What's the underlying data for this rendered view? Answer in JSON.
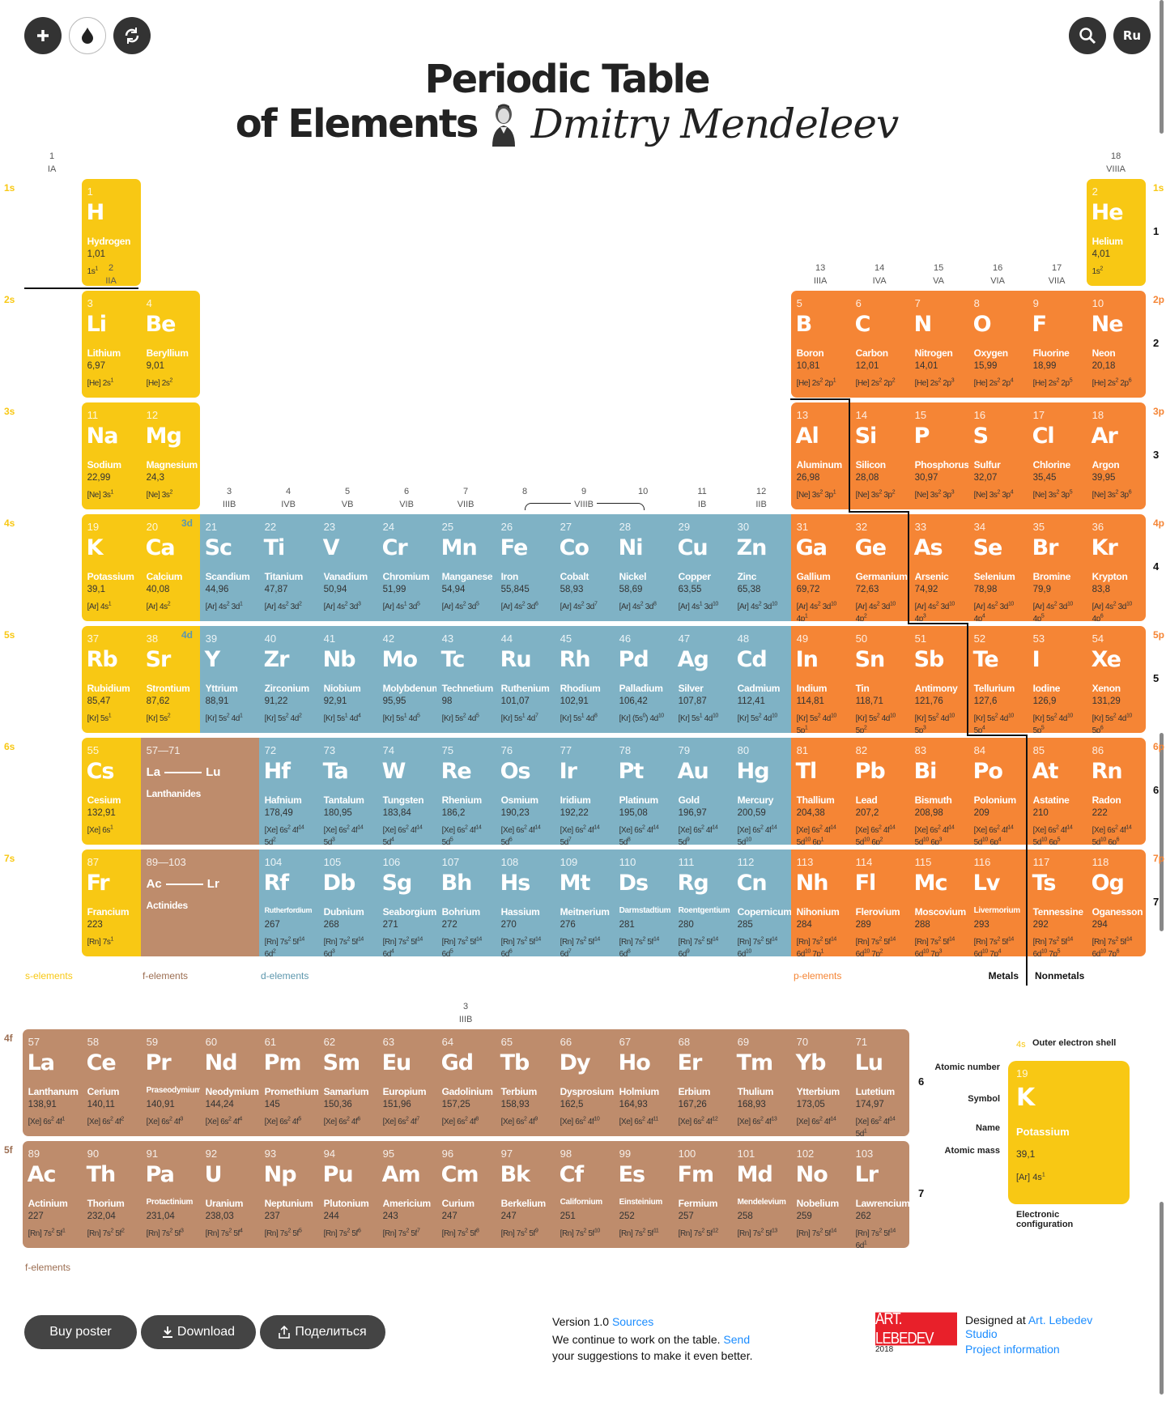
{
  "header": {
    "add_icon": "plus-icon",
    "theme_icon": "droplet-icon",
    "rotate_icon": "refresh-icon",
    "search_icon": "search-icon",
    "lang_label": "Ru",
    "title_line1": "Periodic Table",
    "title_line2_bold": "of Elements",
    "title_line2_italic": "Dmitry Mendeleev"
  },
  "groups": [
    {
      "n": "1",
      "r": "IA"
    },
    {
      "n": "2",
      "r": "IIA"
    },
    {
      "n": "3",
      "r": "IIIB"
    },
    {
      "n": "4",
      "r": "IVB"
    },
    {
      "n": "5",
      "r": "VB"
    },
    {
      "n": "6",
      "r": "VIB"
    },
    {
      "n": "7",
      "r": "VIIB"
    },
    {
      "n": "8",
      "r": ""
    },
    {
      "n": "9",
      "r": "VIIIB"
    },
    {
      "n": "10",
      "r": ""
    },
    {
      "n": "11",
      "r": "IB"
    },
    {
      "n": "12",
      "r": "IIB"
    },
    {
      "n": "13",
      "r": "IIIA"
    },
    {
      "n": "14",
      "r": "IVA"
    },
    {
      "n": "15",
      "r": "VA"
    },
    {
      "n": "16",
      "r": "VIA"
    },
    {
      "n": "17",
      "r": "VIIA"
    },
    {
      "n": "18",
      "r": "VIIIA"
    }
  ],
  "left_levels": [
    "1s",
    "2s",
    "3s",
    "4s",
    "5s",
    "6s",
    "7s"
  ],
  "d_levels": [
    "3d",
    "4d"
  ],
  "right_levels": [
    "1s",
    "2p",
    "3p",
    "4p",
    "5p",
    "6p",
    "7p"
  ],
  "periods": [
    "1",
    "2",
    "3",
    "4",
    "5",
    "6",
    "7"
  ],
  "f_levels": [
    "4f",
    "5f"
  ],
  "f_group": {
    "n": "3",
    "r": "IIIB"
  },
  "placeholders": [
    {
      "range": "57—71",
      "from": "La",
      "to": "Lu",
      "label": "Lanthanides"
    },
    {
      "range": "89—103",
      "from": "Ac",
      "to": "Lr",
      "label": "Actinides"
    }
  ],
  "legend": {
    "s": "s-elements",
    "f": "f-elements",
    "d": "d-elements",
    "p": "p-elements",
    "metals": "Metals",
    "nonmetals": "Nonmetals",
    "f_bottom": "f-elements"
  },
  "colors": {
    "s": "#F8C814",
    "p": "#F58535",
    "d": "#7FB2C5",
    "f": "#BE8C6C",
    "link": "#1a8cff"
  },
  "elements": [
    [
      1,
      "H",
      "Hydrogen",
      "1,01",
      "1s1"
    ],
    [
      2,
      "He",
      "Helium",
      "4,01",
      "1s2"
    ],
    [
      3,
      "Li",
      "Lithium",
      "6,97",
      "[He] 2s1"
    ],
    [
      4,
      "Be",
      "Beryllium",
      "9,01",
      "[He] 2s2"
    ],
    [
      5,
      "B",
      "Boron",
      "10,81",
      "[He] 2s2 2p1"
    ],
    [
      6,
      "C",
      "Carbon",
      "12,01",
      "[He] 2s2 2p2"
    ],
    [
      7,
      "N",
      "Nitrogen",
      "14,01",
      "[He] 2s2 2p3"
    ],
    [
      8,
      "O",
      "Oxygen",
      "15,99",
      "[He] 2s2 2p4"
    ],
    [
      9,
      "F",
      "Fluorine",
      "18,99",
      "[He] 2s2 2p5"
    ],
    [
      10,
      "Ne",
      "Neon",
      "20,18",
      "[He] 2s2 2p6"
    ],
    [
      11,
      "Na",
      "Sodium",
      "22,99",
      "[Ne] 3s1"
    ],
    [
      12,
      "Mg",
      "Magnesium",
      "24,3",
      "[Ne] 3s2"
    ],
    [
      13,
      "Al",
      "Aluminum",
      "26,98",
      "[Ne] 3s2 3p1"
    ],
    [
      14,
      "Si",
      "Silicon",
      "28,08",
      "[Ne] 3s2 3p2"
    ],
    [
      15,
      "P",
      "Phosphorus",
      "30,97",
      "[Ne] 3s2 3p3"
    ],
    [
      16,
      "S",
      "Sulfur",
      "32,07",
      "[Ne] 3s2 3p4"
    ],
    [
      17,
      "Cl",
      "Chlorine",
      "35,45",
      "[Ne] 3s2 3p5"
    ],
    [
      18,
      "Ar",
      "Argon",
      "39,95",
      "[Ne] 3s2 3p6"
    ],
    [
      19,
      "K",
      "Potassium",
      "39,1",
      "[Ar] 4s1"
    ],
    [
      20,
      "Ca",
      "Calcium",
      "40,08",
      "[Ar] 4s2"
    ],
    [
      21,
      "Sc",
      "Scandium",
      "44,96",
      "[Ar] 4s2 3d1"
    ],
    [
      22,
      "Ti",
      "Titanium",
      "47,87",
      "[Ar] 4s2 3d2"
    ],
    [
      23,
      "V",
      "Vanadium",
      "50,94",
      "[Ar] 4s2 3d3"
    ],
    [
      24,
      "Cr",
      "Chromium",
      "51,99",
      "[Ar] 4s1 3d5"
    ],
    [
      25,
      "Mn",
      "Manganese",
      "54,94",
      "[Ar] 4s2 3d5"
    ],
    [
      26,
      "Fe",
      "Iron",
      "55,845",
      "[Ar] 4s2 3d6"
    ],
    [
      27,
      "Co",
      "Cobalt",
      "58,93",
      "[Ar] 4s2 3d7"
    ],
    [
      28,
      "Ni",
      "Nickel",
      "58,69",
      "[Ar] 4s2 3d8"
    ],
    [
      29,
      "Cu",
      "Copper",
      "63,55",
      "[Ar] 4s1 3d10"
    ],
    [
      30,
      "Zn",
      "Zinc",
      "65,38",
      "[Ar] 4s2 3d10"
    ],
    [
      31,
      "Ga",
      "Gallium",
      "69,72",
      "[Ar] 4s2 3d10 4p1"
    ],
    [
      32,
      "Ge",
      "Germanium",
      "72,63",
      "[Ar] 4s2 3d10 4p2"
    ],
    [
      33,
      "As",
      "Arsenic",
      "74,92",
      "[Ar] 4s2 3d10 4p3"
    ],
    [
      34,
      "Se",
      "Selenium",
      "78,98",
      "[Ar] 4s2 3d10 4p4"
    ],
    [
      35,
      "Br",
      "Bromine",
      "79,9",
      "[Ar] 4s2 3d10 4p5"
    ],
    [
      36,
      "Kr",
      "Krypton",
      "83,8",
      "[Ar] 4s2 3d10 4p6"
    ],
    [
      37,
      "Rb",
      "Rubidium",
      "85,47",
      "[Kr] 5s1"
    ],
    [
      38,
      "Sr",
      "Strontium",
      "87,62",
      "[Kr] 5s2"
    ],
    [
      39,
      "Y",
      "Yttrium",
      "88,91",
      "[Kr] 5s2 4d1"
    ],
    [
      40,
      "Zr",
      "Zirconium",
      "91,22",
      "[Kr] 5s2 4d2"
    ],
    [
      41,
      "Nb",
      "Niobium",
      "92,91",
      "[Kr] 5s1 4d4"
    ],
    [
      42,
      "Mo",
      "Molybdenum",
      "95,95",
      "[Kr] 5s1 4d5"
    ],
    [
      43,
      "Tc",
      "Technetium",
      "98",
      "[Kr] 5s2 4d5"
    ],
    [
      44,
      "Ru",
      "Ruthenium",
      "101,07",
      "[Kr] 5s1 4d7"
    ],
    [
      45,
      "Rh",
      "Rhodium",
      "102,91",
      "[Kr] 5s1 4d8"
    ],
    [
      46,
      "Pd",
      "Palladium",
      "106,42",
      "[Kr] (5s0) 4d10"
    ],
    [
      47,
      "Ag",
      "Silver",
      "107,87",
      "[Kr] 5s1 4d10"
    ],
    [
      48,
      "Cd",
      "Cadmium",
      "112,41",
      "[Kr] 5s2 4d10"
    ],
    [
      49,
      "In",
      "Indium",
      "114,81",
      "[Kr] 5s2 4d10 5p1"
    ],
    [
      50,
      "Sn",
      "Tin",
      "118,71",
      "[Kr] 5s2 4d10 5p2"
    ],
    [
      51,
      "Sb",
      "Antimony",
      "121,76",
      "[Kr] 5s2 4d10 5p3"
    ],
    [
      52,
      "Te",
      "Tellurium",
      "127,6",
      "[Kr] 5s2 4d10 5p4"
    ],
    [
      53,
      "I",
      "Iodine",
      "126,9",
      "[Kr] 5s2 4d10 5p5"
    ],
    [
      54,
      "Xe",
      "Xenon",
      "131,29",
      "[Kr] 5s2 4d10 5p6"
    ],
    [
      55,
      "Cs",
      "Cesium",
      "132,91",
      "[Xe] 6s1"
    ],
    [
      56,
      "Ba",
      "Barium",
      "137,33",
      "[Xe] 6s2"
    ],
    [
      57,
      "La",
      "Lanthanum",
      "138,91",
      "[Xe] 6s2 4f1"
    ],
    [
      58,
      "Ce",
      "Cerium",
      "140,11",
      "[Xe] 6s2 4f2"
    ],
    [
      59,
      "Pr",
      "Praseodymium",
      "140,91",
      "[Xe] 6s2 4f3"
    ],
    [
      60,
      "Nd",
      "Neodymium",
      "144,24",
      "[Xe] 6s2 4f4"
    ],
    [
      61,
      "Pm",
      "Promethium",
      "145",
      "[Xe] 6s2 4f5"
    ],
    [
      62,
      "Sm",
      "Samarium",
      "150,36",
      "[Xe] 6s2 4f6"
    ],
    [
      63,
      "Eu",
      "Europium",
      "151,96",
      "[Xe] 6s2 4f7"
    ],
    [
      64,
      "Gd",
      "Gadolinium",
      "157,25",
      "[Xe] 6s2 4f8"
    ],
    [
      65,
      "Tb",
      "Terbium",
      "158,93",
      "[Xe] 6s2 4f9"
    ],
    [
      66,
      "Dy",
      "Dysprosium",
      "162,5",
      "[Xe] 6s2 4f10"
    ],
    [
      67,
      "Ho",
      "Holmium",
      "164,93",
      "[Xe] 6s2 4f11"
    ],
    [
      68,
      "Er",
      "Erbium",
      "167,26",
      "[Xe] 6s2 4f12"
    ],
    [
      69,
      "Tm",
      "Thulium",
      "168,93",
      "[Xe] 6s2 4f13"
    ],
    [
      70,
      "Yb",
      "Ytterbium",
      "173,05",
      "[Xe] 6s2 4f14"
    ],
    [
      71,
      "Lu",
      "Lutetium",
      "174,97",
      "[Xe] 6s2 4f14 5d1"
    ],
    [
      72,
      "Hf",
      "Hafnium",
      "178,49",
      "[Xe] 6s2 4f14 5d2"
    ],
    [
      73,
      "Ta",
      "Tantalum",
      "180,95",
      "[Xe] 6s2 4f14 5d3"
    ],
    [
      74,
      "W",
      "Tungsten",
      "183,84",
      "[Xe] 6s2 4f14 5d4"
    ],
    [
      75,
      "Re",
      "Rhenium",
      "186,2",
      "[Xe] 6s2 4f14 5d5"
    ],
    [
      76,
      "Os",
      "Osmium",
      "190,23",
      "[Xe] 6s2 4f14 5d6"
    ],
    [
      77,
      "Ir",
      "Iridium",
      "192,22",
      "[Xe] 6s2 4f14 5d7"
    ],
    [
      78,
      "Pt",
      "Platinum",
      "195,08",
      "[Xe] 6s2 4f14 5d8"
    ],
    [
      79,
      "Au",
      "Gold",
      "196,97",
      "[Xe] 6s2 4f14 5d9"
    ],
    [
      80,
      "Hg",
      "Mercury",
      "200,59",
      "[Xe] 6s2 4f14 5d10"
    ],
    [
      81,
      "Tl",
      "Thallium",
      "204,38",
      "[Xe] 6s2 4f14 5d10 6p1"
    ],
    [
      82,
      "Pb",
      "Lead",
      "207,2",
      "[Xe] 6s2 4f14 5d10 6p2"
    ],
    [
      83,
      "Bi",
      "Bismuth",
      "208,98",
      "[Xe] 6s2 4f14 5d10 6p3"
    ],
    [
      84,
      "Po",
      "Polonium",
      "209",
      "[Xe] 6s2 4f14 5d10 6p4"
    ],
    [
      85,
      "At",
      "Astatine",
      "210",
      "[Xe] 6s2 4f14 5d10 6p5"
    ],
    [
      86,
      "Rn",
      "Radon",
      "222",
      "[Xe] 6s2 4f14 5d10 6p6"
    ],
    [
      87,
      "Fr",
      "Francium",
      "223",
      "[Rn] 7s1"
    ],
    [
      88,
      "Ra",
      "Radium",
      "226",
      "[Rn] 7s2"
    ],
    [
      89,
      "Ac",
      "Actinium",
      "227",
      "[Rn] 7s2 5f1"
    ],
    [
      90,
      "Th",
      "Thorium",
      "232,04",
      "[Rn] 7s2 5f2"
    ],
    [
      91,
      "Pa",
      "Protactinium",
      "231,04",
      "[Rn] 7s2 5f3"
    ],
    [
      92,
      "U",
      "Uranium",
      "238,03",
      "[Rn] 7s2 5f4"
    ],
    [
      93,
      "Np",
      "Neptunium",
      "237",
      "[Rn] 7s2 5f5"
    ],
    [
      94,
      "Pu",
      "Plutonium",
      "244",
      "[Rn] 7s2 5f6"
    ],
    [
      95,
      "Am",
      "Americium",
      "243",
      "[Rn] 7s2 5f7"
    ],
    [
      96,
      "Cm",
      "Curium",
      "247",
      "[Rn] 7s2 5f8"
    ],
    [
      97,
      "Bk",
      "Berkelium",
      "247",
      "[Rn] 7s2 5f9"
    ],
    [
      98,
      "Cf",
      "Californium",
      "251",
      "[Rn] 7s2 5f10"
    ],
    [
      99,
      "Es",
      "Einsteinium",
      "252",
      "[Rn] 7s2 5f11"
    ],
    [
      100,
      "Fm",
      "Fermium",
      "257",
      "[Rn] 7s2 5f12"
    ],
    [
      101,
      "Md",
      "Mendelevium",
      "258",
      "[Rn] 7s2 5f13"
    ],
    [
      102,
      "No",
      "Nobelium",
      "259",
      "[Rn] 7s2 5f14"
    ],
    [
      103,
      "Lr",
      "Lawrencium",
      "262",
      "[Rn] 7s2 5f14 6d1"
    ],
    [
      104,
      "Rf",
      "Rutherfordium",
      "267",
      "[Rn] 7s2 5f14 6d2"
    ],
    [
      105,
      "Db",
      "Dubnium",
      "268",
      "[Rn] 7s2 5f14 6d3"
    ],
    [
      106,
      "Sg",
      "Seaborgium",
      "271",
      "[Rn] 7s2 5f14 6d4"
    ],
    [
      107,
      "Bh",
      "Bohrium",
      "272",
      "[Rn] 7s2 5f14 6d5"
    ],
    [
      108,
      "Hs",
      "Hassium",
      "270",
      "[Rn] 7s2 5f14 6d6"
    ],
    [
      109,
      "Mt",
      "Meitnerium",
      "276",
      "[Rn] 7s2 5f14 6d7"
    ],
    [
      110,
      "Ds",
      "Darmstadtium",
      "281",
      "[Rn] 7s2 5f14 6d8"
    ],
    [
      111,
      "Rg",
      "Roentgentium",
      "280",
      "[Rn] 7s2 5f14 6d9"
    ],
    [
      112,
      "Cn",
      "Copernicum",
      "285",
      "[Rn] 7s2 5f14 6d10"
    ],
    [
      113,
      "Nh",
      "Nihonium",
      "284",
      "[Rn] 7s2 5f14 6d10 7p1"
    ],
    [
      114,
      "Fl",
      "Flerovium",
      "289",
      "[Rn] 7s2 5f14 6d10 7p2"
    ],
    [
      115,
      "Mc",
      "Moscovium",
      "288",
      "[Rn] 7s2 5f14 6d10 7p3"
    ],
    [
      116,
      "Lv",
      "Livermorium",
      "293",
      "[Rn] 7s2 5f14 6d10 7p4"
    ],
    [
      117,
      "Ts",
      "Tennessine",
      "292",
      "[Rn] 7s2 5f14 6d10 7p5"
    ],
    [
      118,
      "Og",
      "Oganesson",
      "294",
      "[Rn] 7s2 5f14 6d10 7p6"
    ]
  ],
  "key": {
    "shell": "4s",
    "shell_label": "Outer electron shell",
    "atomic_number_label": "Atomic number",
    "symbol_label": "Symbol",
    "name_label": "Name",
    "mass_label": "Atomic mass",
    "config_label_1": "Electronic",
    "config_label_2": "configuration",
    "number": "19",
    "symbol": "K",
    "name": "Potassium",
    "mass": "39,1",
    "config": "[Ar] 4s1"
  },
  "footer": {
    "buy_label": "Buy poster",
    "download_label": "Download",
    "share_label": "Поделиться",
    "version": "Version 1.0 ",
    "sources": "Sources",
    "continue_text": "We continue to work on the table. ",
    "send": "Send",
    "suggestions": "your suggestions to make it even better.",
    "logo_text": "ART. LEBEDEV",
    "logo_year": "2018",
    "designed_at": "Designed at ",
    "studio": "Art. Lebedev Studio",
    "project_info": "Project information"
  }
}
